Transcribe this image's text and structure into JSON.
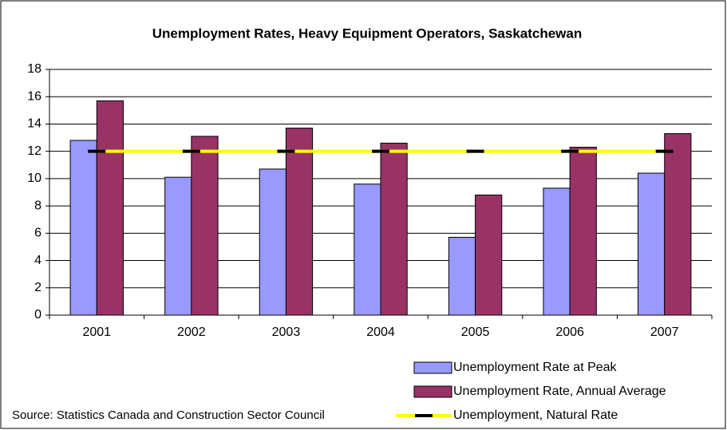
{
  "chart_data": {
    "type": "bar",
    "title": "Unemployment Rates, Heavy Equipment Operators, Saskatchewan",
    "source": "Source:  Statistics Canada and Construction Sector Council",
    "categories": [
      "2001",
      "2002",
      "2003",
      "2004",
      "2005",
      "2006",
      "2007"
    ],
    "series": [
      {
        "name": "Unemployment Rate at Peak",
        "color": "#9999ff",
        "values": [
          12.8,
          10.1,
          10.7,
          9.6,
          5.7,
          9.3,
          10.4
        ]
      },
      {
        "name": "Unemployment Rate, Annual Average",
        "color": "#993366",
        "values": [
          15.7,
          13.1,
          13.7,
          12.6,
          8.8,
          12.3,
          13.3
        ]
      },
      {
        "name": "Unemployment, Natural Rate",
        "type": "line",
        "color": "#ffff00",
        "marker_color": "#000000",
        "values": [
          12,
          12,
          12,
          12,
          12,
          12,
          12
        ]
      }
    ],
    "ylim": [
      0,
      18
    ],
    "yticks": [
      0,
      2,
      4,
      6,
      8,
      10,
      12,
      14,
      16,
      18
    ],
    "grid": true,
    "legend": "bottom-right"
  }
}
